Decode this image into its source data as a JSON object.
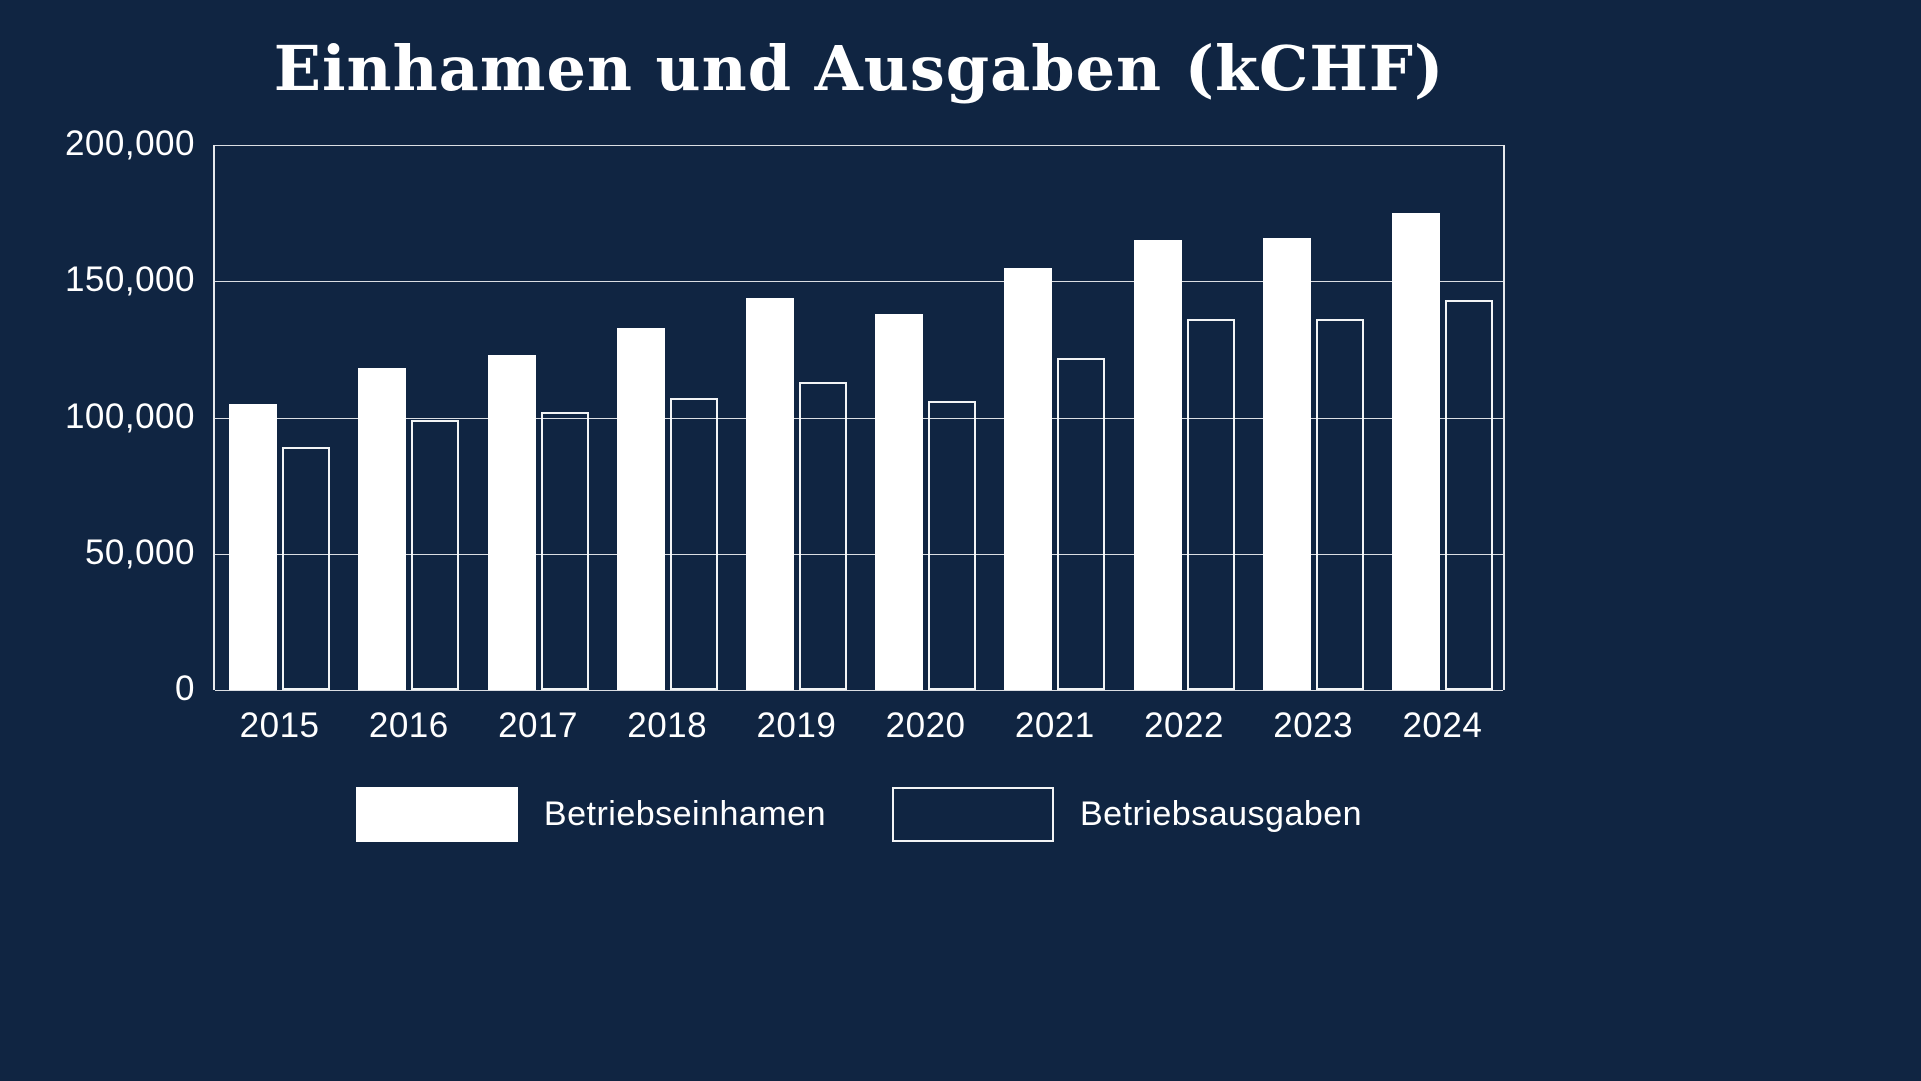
{
  "chart_data": {
    "type": "bar",
    "title": "Einhamen und Ausgaben (kCHF)",
    "categories": [
      "2015",
      "2016",
      "2017",
      "2018",
      "2019",
      "2020",
      "2021",
      "2022",
      "2023",
      "2024"
    ],
    "series": [
      {
        "name": "Betriebseinhamen",
        "style": "filled",
        "values": [
          105000,
          118000,
          123000,
          133000,
          144000,
          138000,
          155000,
          165000,
          166000,
          175000
        ]
      },
      {
        "name": "Betriebsausgaben",
        "style": "outlined",
        "values": [
          89000,
          99000,
          102000,
          107000,
          113000,
          106000,
          122000,
          136000,
          136000,
          143000
        ]
      }
    ],
    "ylim": [
      0,
      200000
    ],
    "yticks": [
      0,
      50000,
      100000,
      150000,
      200000
    ],
    "ytick_labels": [
      "0",
      "50,000",
      "100,000",
      "150,000",
      "200,000"
    ],
    "grid": true,
    "legend_position": "bottom"
  },
  "colors": {
    "background": "#102542",
    "bar_fill": "#ffffff",
    "bar_outline": "#ffffff",
    "grid": "#ffffff",
    "text": "#ffffff"
  }
}
